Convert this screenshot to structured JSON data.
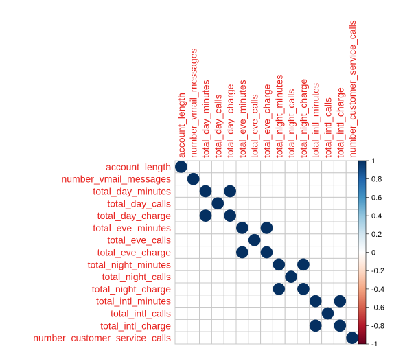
{
  "chart_data": {
    "type": "heatmap",
    "title": "",
    "variables": [
      "account_length",
      "number_vmail_messages",
      "total_day_minutes",
      "total_day_calls",
      "total_day_charge",
      "total_eve_minutes",
      "total_eve_calls",
      "total_eve_charge",
      "total_night_minutes",
      "total_night_calls",
      "total_night_charge",
      "total_intl_minutes",
      "total_intl_calls",
      "total_intl_charge",
      "number_customer_service_calls"
    ],
    "high_correlation_pairs": [
      [
        "total_day_minutes",
        "total_day_charge",
        1.0
      ],
      [
        "total_eve_minutes",
        "total_eve_charge",
        1.0
      ],
      [
        "total_night_minutes",
        "total_night_charge",
        1.0
      ],
      [
        "total_intl_minutes",
        "total_intl_charge",
        1.0
      ]
    ],
    "other_correlations": 0,
    "scale": {
      "min": -1,
      "max": 1,
      "ticks": [
        "-1",
        "-0.8",
        "-0.6",
        "-0.4",
        "-0.2",
        "0",
        "0.2",
        "0.4",
        "0.6",
        "0.8",
        "1"
      ]
    },
    "grid": true,
    "colors": {
      "label": "#e8231f",
      "grid": "#c8c8c8",
      "positive": "#053061",
      "positive_light": "#f7fbff",
      "negative": "#67001f",
      "negative_light": "#fff6f3",
      "text": "#000000"
    }
  }
}
